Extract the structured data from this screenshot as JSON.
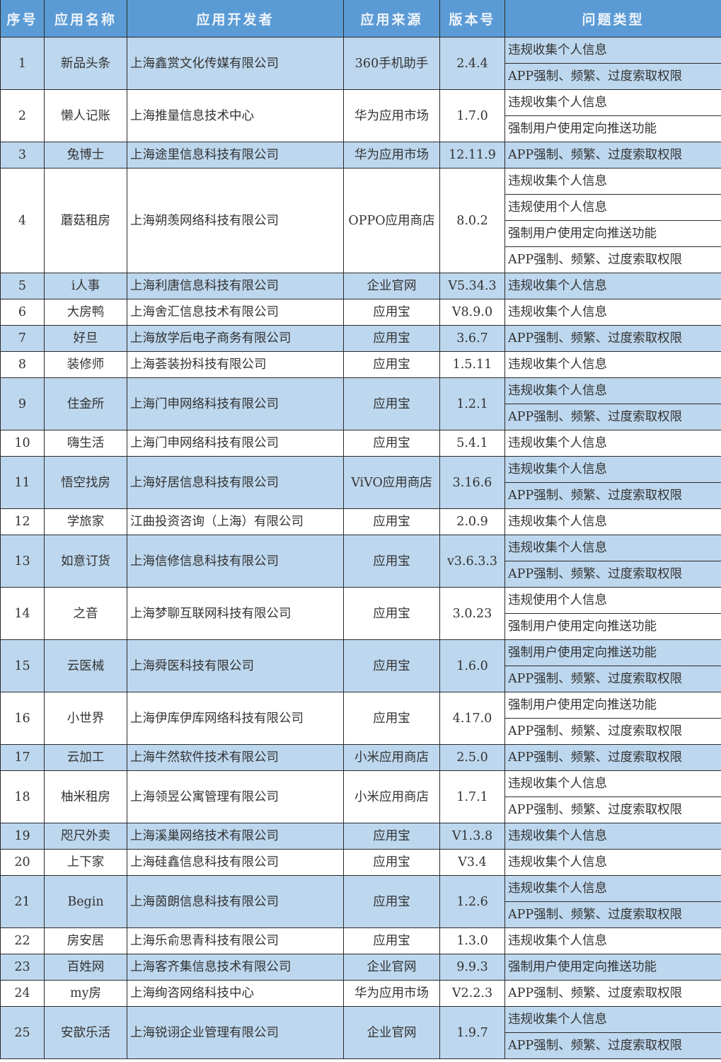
{
  "colors": {
    "header": "#5b9bd5",
    "row_alt": "#bdd7ee",
    "row": "#ffffff"
  },
  "headers": [
    "序号",
    "应用名称",
    "应用开发者",
    "应用来源",
    "版本号",
    "问题类型"
  ],
  "rows": [
    {
      "no": "1",
      "name": "新品头条",
      "developer": "上海鑫赏文化传媒有限公司",
      "source": "360手机助手",
      "version": "2.4.4",
      "issues": [
        "违规收集个人信息",
        "APP强制、频繁、过度索取权限"
      ]
    },
    {
      "no": "2",
      "name": "懒人记账",
      "developer": "上海推量信息技术中心",
      "source": "华为应用市场",
      "version": "1.7.0",
      "issues": [
        "违规收集个人信息",
        "强制用户使用定向推送功能"
      ]
    },
    {
      "no": "3",
      "name": "兔博士",
      "developer": "上海途里信息科技有限公司",
      "source": "华为应用市场",
      "version": "12.11.9",
      "issues": [
        "APP强制、频繁、过度索取权限"
      ]
    },
    {
      "no": "4",
      "name": "蘑菇租房",
      "developer": "上海朔羡网络科技有限公司",
      "source": "OPPO应用商店",
      "version": "8.0.2",
      "issues": [
        "违规收集个人信息",
        "违规使用个人信息",
        "强制用户使用定向推送功能",
        "APP强制、频繁、过度索取权限"
      ]
    },
    {
      "no": "5",
      "name": "i人事",
      "developer": "上海利唐信息科技有限公司",
      "source": "企业官网",
      "version": "V5.34.3",
      "issues": [
        "违规收集个人信息"
      ]
    },
    {
      "no": "6",
      "name": "大房鸭",
      "developer": "上海舍汇信息技术有限公司",
      "source": "应用宝",
      "version": "V8.9.0",
      "issues": [
        "违规收集个人信息"
      ]
    },
    {
      "no": "7",
      "name": "好旦",
      "developer": "上海放学后电子商务有限公司",
      "source": "应用宝",
      "version": "3.6.7",
      "issues": [
        "APP强制、频繁、过度索取权限"
      ]
    },
    {
      "no": "8",
      "name": "装修师",
      "developer": "上海荟装扮科技有限公司",
      "source": "应用宝",
      "version": "1.5.11",
      "issues": [
        "违规收集个人信息"
      ]
    },
    {
      "no": "9",
      "name": "住金所",
      "developer": "上海门申网络科技有限公司",
      "source": "应用宝",
      "version": "1.2.1",
      "issues": [
        "违规收集个人信息",
        "APP强制、频繁、过度索取权限"
      ]
    },
    {
      "no": "10",
      "name": "嗨生活",
      "developer": "上海门申网络科技有限公司",
      "source": "应用宝",
      "version": "5.4.1",
      "issues": [
        "违规收集个人信息"
      ]
    },
    {
      "no": "11",
      "name": "悟空找房",
      "developer": "上海好居信息科技有限公司",
      "source": "ViVO应用商店",
      "version": "3.16.6",
      "issues": [
        "违规收集个人信息",
        "APP强制、频繁、过度索取权限"
      ]
    },
    {
      "no": "12",
      "name": "学旅家",
      "developer": "江曲投资咨询（上海）有限公司",
      "source": "应用宝",
      "version": "2.0.9",
      "issues": [
        "违规收集个人信息"
      ]
    },
    {
      "no": "13",
      "name": "如意订货",
      "developer": "上海信修信息科技有限公司",
      "source": "应用宝",
      "version": "v3.6.3.3",
      "issues": [
        "违规收集个人信息",
        "APP强制、频繁、过度索取权限"
      ]
    },
    {
      "no": "14",
      "name": "之音",
      "developer": "上海梦聊互联网科技有限公司",
      "source": "应用宝",
      "version": "3.0.23",
      "issues": [
        "违规使用个人信息",
        "强制用户使用定向推送功能"
      ]
    },
    {
      "no": "15",
      "name": "云医械",
      "developer": "上海舜医科技有限公司",
      "source": "应用宝",
      "version": "1.6.0",
      "issues": [
        "强制用户使用定向推送功能",
        "APP强制、频繁、过度索取权限"
      ]
    },
    {
      "no": "16",
      "name": "小世界",
      "developer": "上海伊库伊库网络科技有限公司",
      "source": "应用宝",
      "version": "4.17.0",
      "issues": [
        "强制用户使用定向推送功能",
        "APP强制、频繁、过度索取权限"
      ]
    },
    {
      "no": "17",
      "name": "云加工",
      "developer": "上海牛然软件技术有限公司",
      "source": "小米应用商店",
      "version": "2.5.0",
      "issues": [
        "APP强制、频繁、过度索取权限"
      ]
    },
    {
      "no": "18",
      "name": "柚米租房",
      "developer": "上海领昱公寓管理有限公司",
      "source": "小米应用商店",
      "version": "1.7.1",
      "issues": [
        "违规收集个人信息",
        "APP强制、频繁、过度索取权限"
      ]
    },
    {
      "no": "19",
      "name": "咫尺外卖",
      "developer": "上海溪巢网络技术有限公司",
      "source": "应用宝",
      "version": "V1.3.8",
      "issues": [
        "违规收集个人信息"
      ]
    },
    {
      "no": "20",
      "name": "上下家",
      "developer": "上海硅鑫信息科技有限公司",
      "source": "应用宝",
      "version": "V3.4",
      "issues": [
        "违规收集个人信息"
      ]
    },
    {
      "no": "21",
      "name": "Begin",
      "developer": "上海茵朗信息科技有限公司",
      "source": "应用宝",
      "version": "1.2.6",
      "issues": [
        "违规收集个人信息",
        "APP强制、频繁、过度索取权限"
      ]
    },
    {
      "no": "22",
      "name": "房安居",
      "developer": "上海乐俞思青科技有限公司",
      "source": "应用宝",
      "version": "1.3.0",
      "issues": [
        "违规收集个人信息"
      ]
    },
    {
      "no": "23",
      "name": "百姓网",
      "developer": "上海客齐集信息技术有限公司",
      "source": "企业官网",
      "version": "9.9.3",
      "issues": [
        "强制用户使用定向推送功能"
      ]
    },
    {
      "no": "24",
      "name": "my房",
      "developer": "上海绚咨网络科技中心",
      "source": "华为应用市场",
      "version": "V2.2.3",
      "issues": [
        "APP强制、频繁、过度索取权限"
      ]
    },
    {
      "no": "25",
      "name": "安歆乐活",
      "developer": "上海锐诩企业管理有限公司",
      "source": "企业官网",
      "version": "1.9.7",
      "issues": [
        "违规收集个人信息",
        "APP强制、频繁、过度索取权限"
      ]
    }
  ]
}
